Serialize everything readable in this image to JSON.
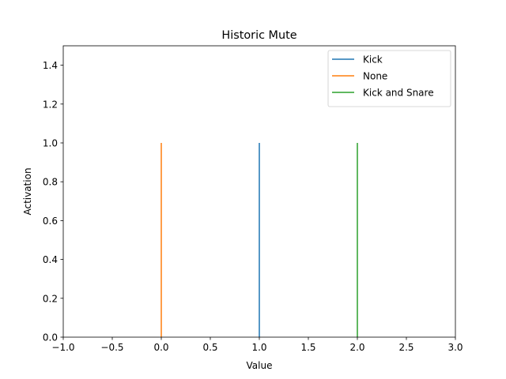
{
  "chart_data": {
    "type": "line",
    "title": "Historic Mute",
    "xlabel": "Value",
    "ylabel": "Activation",
    "xlim": [
      -1.0,
      3.0
    ],
    "ylim": [
      0.0,
      1.5
    ],
    "xticks": [
      -1.0,
      -0.5,
      0.0,
      0.5,
      1.0,
      1.5,
      2.0,
      2.5,
      3.0
    ],
    "xtick_labels": [
      "−1.0",
      "−0.5",
      "0.0",
      "0.5",
      "1.0",
      "1.5",
      "2.0",
      "2.5",
      "3.0"
    ],
    "yticks": [
      0.0,
      0.2,
      0.4,
      0.6,
      0.8,
      1.0,
      1.2,
      1.4
    ],
    "ytick_labels": [
      "0.0",
      "0.2",
      "0.4",
      "0.6",
      "0.8",
      "1.0",
      "1.2",
      "1.4"
    ],
    "grid": false,
    "legend_position": "top-right",
    "series": [
      {
        "name": "Kick",
        "color": "#1f77b4",
        "x": [
          1.0,
          1.0
        ],
        "y": [
          0.0,
          1.0
        ]
      },
      {
        "name": "None",
        "color": "#ff7f0e",
        "x": [
          0.0,
          0.0
        ],
        "y": [
          0.0,
          1.0
        ]
      },
      {
        "name": "Kick and Snare",
        "color": "#2ca02c",
        "x": [
          2.0,
          2.0
        ],
        "y": [
          0.0,
          1.0
        ]
      }
    ]
  }
}
